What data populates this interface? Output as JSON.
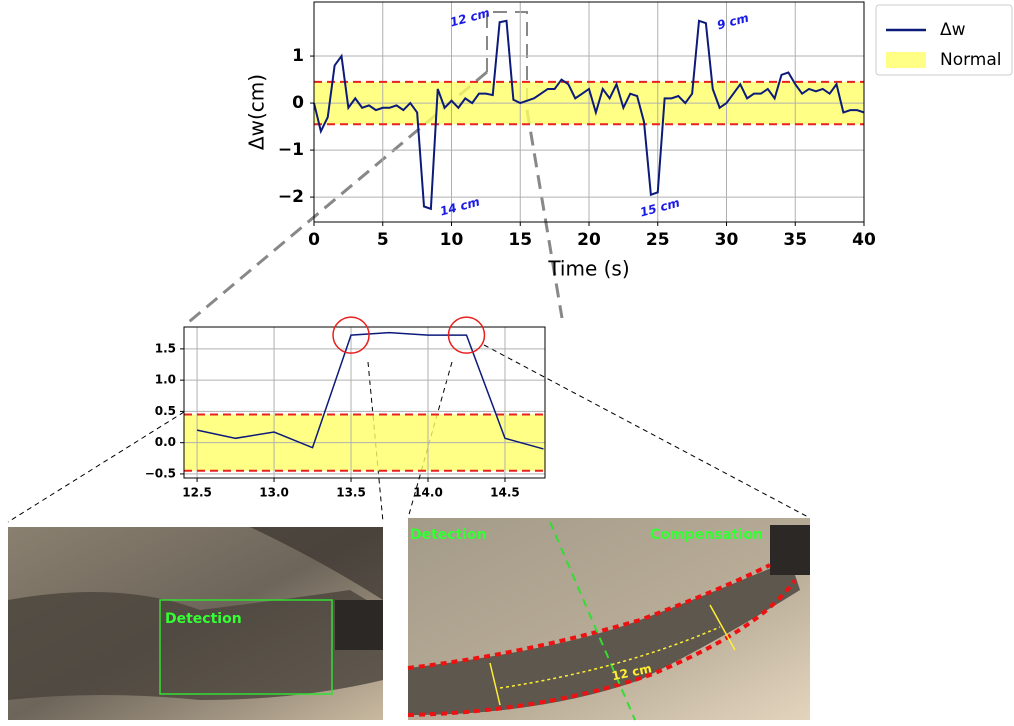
{
  "chart_data": [
    {
      "type": "line",
      "x": [
        0,
        0.5,
        1,
        1.5,
        2,
        2.5,
        3,
        3.5,
        4,
        4.5,
        5,
        5.5,
        6,
        6.5,
        7,
        7.5,
        8,
        8.5,
        9,
        9.5,
        10,
        10.5,
        11,
        11.5,
        12,
        12.5,
        13,
        13.5,
        14,
        14.5,
        15,
        15.5,
        16,
        16.5,
        17,
        17.5,
        18,
        18.5,
        19,
        19.5,
        20,
        20.5,
        21,
        21.5,
        22,
        22.5,
        23,
        23.5,
        24,
        24.5,
        25,
        25.5,
        26,
        26.5,
        27,
        27.5,
        28,
        28.5,
        29,
        29.5,
        30,
        30.5,
        31,
        31.5,
        32,
        32.5,
        33,
        33.5,
        34,
        34.5,
        35,
        35.5,
        36,
        36.5,
        37,
        37.5,
        38,
        38.5,
        39,
        39.5,
        40
      ],
      "series": [
        {
          "name": "Δw",
          "color": "#0c1a7a",
          "values": [
            0,
            -0.6,
            -0.3,
            0.8,
            1.0,
            -0.1,
            0.1,
            -0.1,
            -0.05,
            -0.15,
            -0.1,
            -0.1,
            -0.05,
            -0.15,
            0.0,
            -0.2,
            -2.2,
            -2.25,
            0.3,
            -0.1,
            0.05,
            -0.1,
            0.1,
            0.0,
            0.2,
            0.2,
            0.17,
            1.72,
            1.75,
            0.07,
            0.0,
            0.05,
            0.1,
            0.2,
            0.3,
            0.3,
            0.5,
            0.4,
            0.1,
            0.2,
            0.3,
            -0.2,
            0.3,
            0.1,
            0.4,
            -0.1,
            0.2,
            0.15,
            -0.4,
            -1.95,
            -1.9,
            0.1,
            0.1,
            0.15,
            0.0,
            0.2,
            1.75,
            1.7,
            0.3,
            -0.1,
            0.0,
            0.2,
            0.4,
            0.1,
            0.2,
            0.2,
            0.3,
            0.1,
            0.6,
            0.65,
            0.4,
            0.2,
            0.3,
            0.25,
            0.3,
            0.2,
            0.4,
            -0.2,
            -0.15,
            -0.15,
            -0.2
          ]
        }
      ],
      "band": {
        "name": "Normal",
        "range": [
          -0.45,
          0.45
        ],
        "color": "#ffff66",
        "line_color": "#e8201e"
      },
      "xlabel": "Time (s)",
      "ylabel": "Δw(cm)",
      "xlim": [
        0,
        40
      ],
      "ylim": [
        -2.53,
        2.15
      ],
      "xticks": [
        0,
        5,
        10,
        15,
        20,
        25,
        30,
        35,
        40
      ],
      "yticks": [
        {
          "value": -2,
          "label": "−2"
        },
        {
          "value": -1,
          "label": "−1"
        },
        0,
        1
      ],
      "grid": true,
      "legend": "outside right",
      "annotations": [
        "12 cm",
        "14 cm",
        "9 cm",
        "15 cm"
      ]
    },
    {
      "type": "line",
      "x": [
        12.5,
        12.75,
        13,
        13.25,
        13.5,
        13.75,
        14,
        14.25,
        14.5,
        14.75
      ],
      "series": [
        {
          "color": "#0c1a7a",
          "values": [
            0.2,
            0.07,
            0.17,
            -0.08,
            1.72,
            1.76,
            1.72,
            1.72,
            0.07,
            -0.1
          ]
        }
      ],
      "band": {
        "range": [
          -0.45,
          0.45
        ],
        "color": "#ffff66",
        "line_color": "#e8201e"
      },
      "xlim": [
        12.415,
        14.76
      ],
      "ylim": [
        -0.565,
        1.85
      ],
      "xticks": [
        12.5,
        {
          "value": 13,
          "label": "13.0"
        },
        13.5,
        {
          "value": 14,
          "label": "14.0"
        },
        14.5
      ],
      "yticks": [
        {
          "value": -0.5,
          "label": "−0.5"
        },
        {
          "value": 0,
          "label": "0.0"
        },
        0.5,
        {
          "value": 1,
          "label": "1.0"
        },
        1.5
      ],
      "grid": true,
      "highlight_x": [
        13.5,
        14.25
      ]
    }
  ],
  "photos": [
    {
      "labels": [
        "Detection"
      ]
    },
    {
      "labels": [
        "Detection",
        "Compensation",
        "12 cm"
      ]
    }
  ]
}
